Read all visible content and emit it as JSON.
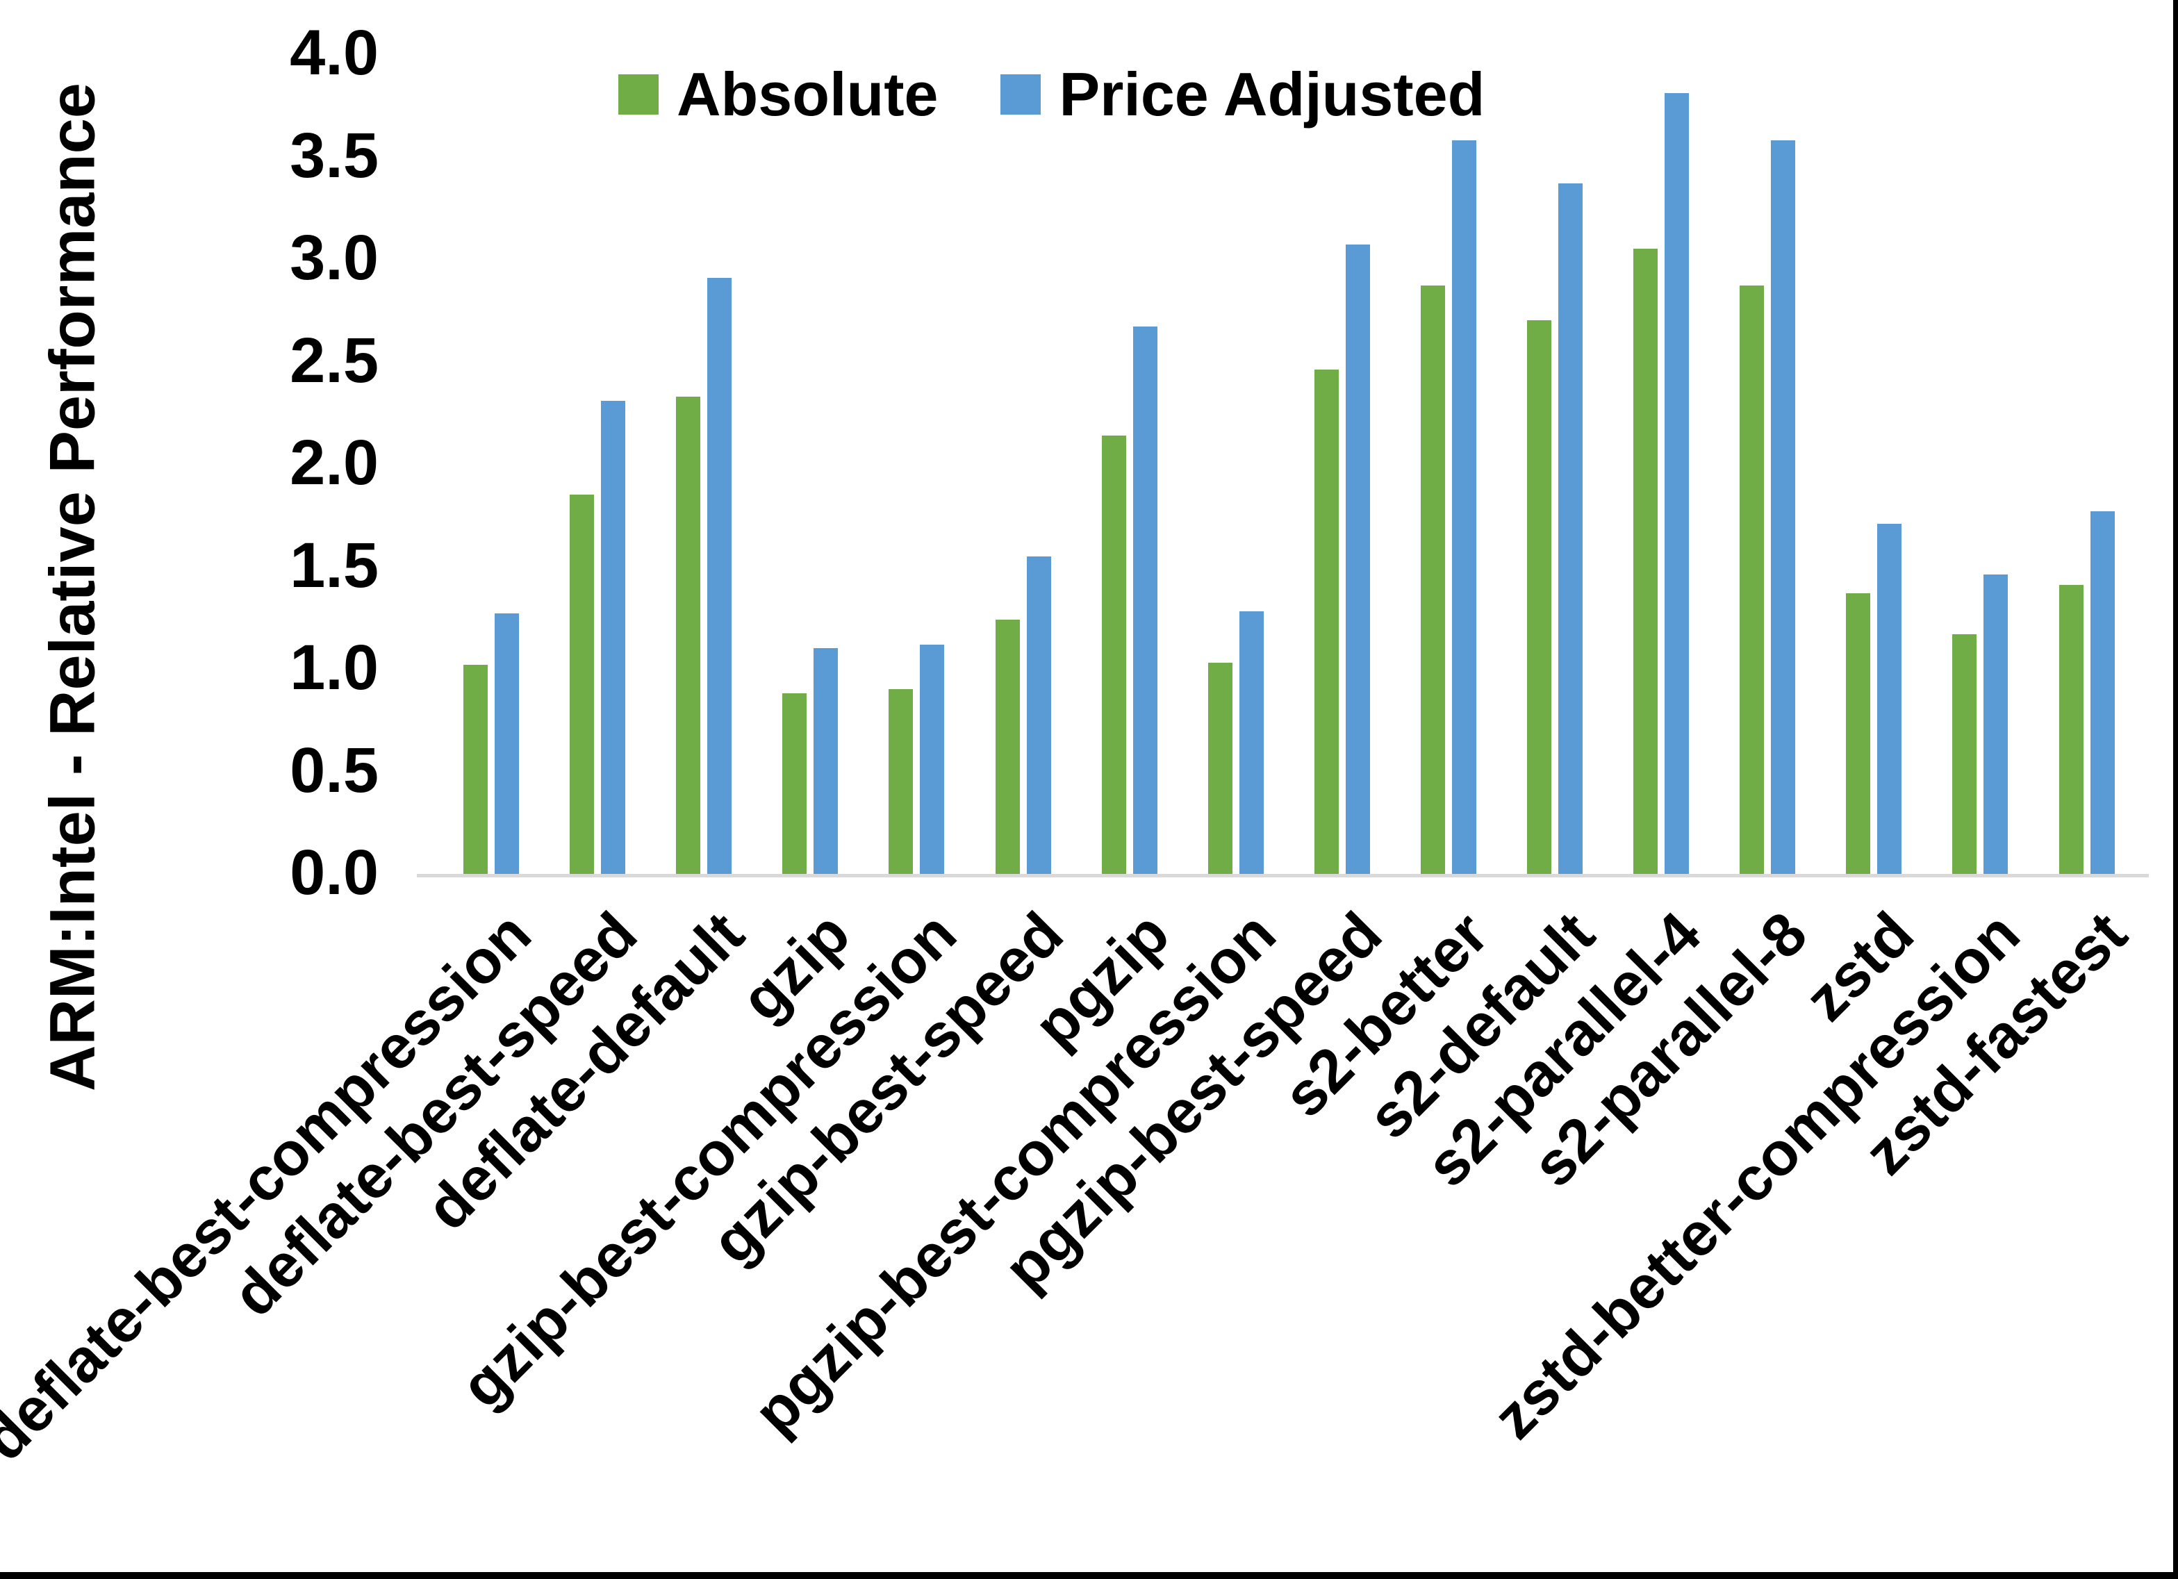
{
  "chart_data": {
    "type": "bar",
    "title": "",
    "xlabel": "",
    "ylabel": "ARM:Intel - Relative Performance",
    "ylim": [
      0,
      4
    ],
    "ytick_step": 0.5,
    "ytick_labels": [
      "0.0",
      "0.5",
      "1.0",
      "1.5",
      "2.0",
      "2.5",
      "3.0",
      "3.5",
      "4.0"
    ],
    "grid": false,
    "legend_position": "top-center",
    "categories": [
      "deflate-best-compression",
      "deflate-best-speed",
      "deflate-default",
      "gzip",
      "gzip-best-compression",
      "gzip-best-speed",
      "pgzip",
      "pgzip-best-compression",
      "pgzip-best-speed",
      "s2-better",
      "s2-default",
      "s2-parallel-4",
      "s2-parallel-8",
      "zstd",
      "zstd-better-compression",
      "zstd-fastest"
    ],
    "series": [
      {
        "name": "Absolute",
        "color": "#70AD47",
        "values": [
          1.02,
          1.85,
          2.33,
          0.88,
          0.9,
          1.24,
          2.14,
          1.03,
          2.46,
          2.87,
          2.7,
          3.05,
          2.87,
          1.37,
          1.17,
          1.41
        ]
      },
      {
        "name": "Price Adjusted",
        "color": "#5B9BD5",
        "values": [
          1.27,
          2.31,
          2.91,
          1.1,
          1.12,
          1.55,
          2.67,
          1.28,
          3.07,
          3.58,
          3.37,
          3.81,
          3.58,
          1.71,
          1.46,
          1.77
        ]
      }
    ]
  },
  "colors": {
    "axis_line": "#D9D9D9",
    "text": "#000000",
    "background": "#FFFFFF",
    "frame": "#000000"
  }
}
